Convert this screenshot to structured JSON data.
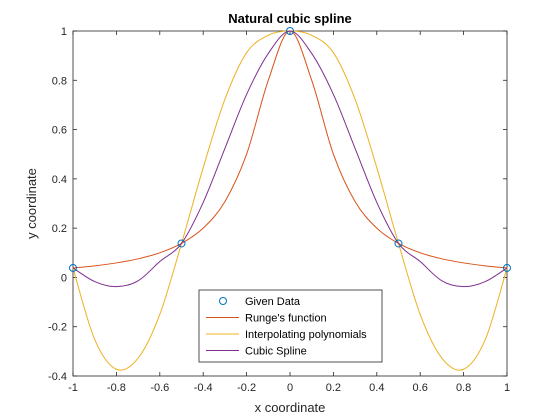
{
  "chart_data": {
    "type": "line",
    "title": "Natural cubic spline",
    "xlabel": "x coordinate",
    "ylabel": "y coordinate",
    "xlim": [
      -1,
      1
    ],
    "ylim": [
      -0.4,
      1
    ],
    "xticks": [
      "-1",
      "-0.8",
      "-0.6",
      "-0.4",
      "-0.2",
      "0",
      "0.2",
      "0.4",
      "0.6",
      "0.8",
      "1"
    ],
    "yticks": [
      "-0.4",
      "-0.2",
      "0",
      "0.2",
      "0.4",
      "0.6",
      "0.8",
      "1"
    ],
    "grid": false,
    "legend_position": "bottom-center",
    "series": [
      {
        "name": "Given Data",
        "style": "markers",
        "color": "#0072bd",
        "x": [
          -1,
          -0.5,
          0,
          0.5,
          1
        ],
        "y": [
          0.0385,
          0.1379,
          1.0,
          0.1379,
          0.0385
        ]
      },
      {
        "name": "Runge's function",
        "style": "line",
        "color": "#d95319",
        "x": [
          -1,
          -0.9,
          -0.8,
          -0.7,
          -0.6,
          -0.5,
          -0.4,
          -0.3,
          -0.2,
          -0.1,
          0,
          0.1,
          0.2,
          0.3,
          0.4,
          0.5,
          0.6,
          0.7,
          0.8,
          0.9,
          1
        ],
        "y": [
          0.0385,
          0.0471,
          0.0588,
          0.0755,
          0.1,
          0.1379,
          0.2,
          0.3077,
          0.5,
          0.8,
          1.0,
          0.8,
          0.5,
          0.3077,
          0.2,
          0.1379,
          0.1,
          0.0755,
          0.0588,
          0.0471,
          0.0385
        ]
      },
      {
        "name": "Interpolating polynomials",
        "style": "line",
        "color": "#edb120",
        "x": [
          -1,
          -0.9,
          -0.8,
          -0.7,
          -0.6,
          -0.5,
          -0.4,
          -0.3,
          -0.2,
          -0.1,
          0,
          0.1,
          0.2,
          0.3,
          0.4,
          0.5,
          0.6,
          0.7,
          0.8,
          0.9,
          1
        ],
        "y": [
          0.0385,
          -0.2518,
          -0.3727,
          -0.3276,
          -0.1501,
          0.1379,
          0.4454,
          0.7228,
          0.912,
          0.9827,
          1.0,
          0.9827,
          0.912,
          0.7228,
          0.4454,
          0.1379,
          -0.1501,
          -0.3276,
          -0.3727,
          -0.2518,
          0.0385
        ]
      },
      {
        "name": "Cubic Spline",
        "style": "line",
        "color": "#7e2f8e",
        "x": [
          -1,
          -0.9,
          -0.8,
          -0.7,
          -0.6,
          -0.5,
          -0.4,
          -0.3,
          -0.2,
          -0.1,
          0,
          0.1,
          0.2,
          0.3,
          0.4,
          0.5,
          0.6,
          0.7,
          0.8,
          0.9,
          1
        ],
        "y": [
          0.0385,
          -0.0168,
          -0.0375,
          -0.0137,
          0.0645,
          0.1379,
          0.3044,
          0.5236,
          0.7427,
          0.9089,
          1.0,
          0.9089,
          0.7427,
          0.5236,
          0.3044,
          0.1379,
          0.0645,
          -0.0137,
          -0.0375,
          -0.0168,
          0.0385
        ]
      }
    ]
  }
}
